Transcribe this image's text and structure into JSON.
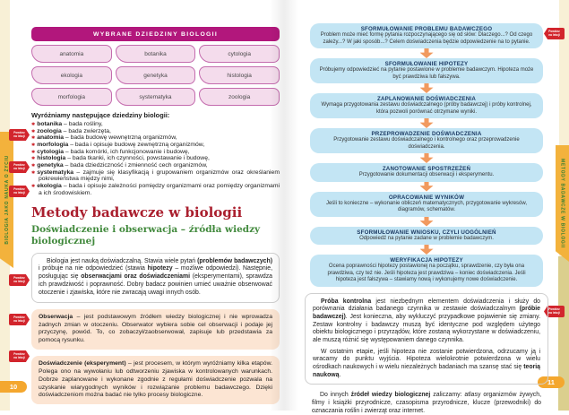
{
  "badge": {
    "line1": "Powtórz",
    "line2": "na lekcji"
  },
  "left_page": {
    "side_tab": "BIOLOGIA JAKO NAUKA O ŻYCIU",
    "page_number": "10",
    "fields_table": {
      "title": "WYBRANE DZIEDZINY BIOLOGII",
      "cells": [
        "anatomia",
        "botanika",
        "cytologia",
        "ekologia",
        "genetyka",
        "histologia",
        "morfologia",
        "systematyka",
        "zoologia"
      ]
    },
    "list_heading": "Wyróżniamy następujące dziedziny biologii:",
    "fields": [
      {
        "term": "botanika",
        "desc": " – bada rośliny,"
      },
      {
        "term": "zoologia",
        "desc": " – bada zwierzęta,"
      },
      {
        "term": "anatomia",
        "desc": " – bada budowę wewnętrzną organizmów,"
      },
      {
        "term": "morfologia",
        "desc": " – bada i opisuje budowę zewnętrzną organizmów,"
      },
      {
        "term": "cytologia",
        "desc": " – bada komórki, ich funkcjonowanie i budowę,"
      },
      {
        "term": "histologia",
        "desc": " – bada tkanki, ich czynności, powstawanie i budowę,"
      },
      {
        "term": "genetyka",
        "desc": " – bada dziedziczność i zmienność cech organizmów,"
      },
      {
        "term": "systematyka",
        "desc": " – zajmuje się klasyfikacją i grupowaniem organizmów oraz określaniem pokrewieństwa między nimi,"
      },
      {
        "term": "ekologia",
        "desc": " – bada i opisuje zależności pomiędzy organizmami oraz pomiędzy organizmami a ich środowiskiem."
      }
    ],
    "section_heading": "Metody badawcze w biologii",
    "subsection_heading": "Doświadczenie i obserwacja – źródła wiedzy biologicznej",
    "intro_paragraph": [
      {
        "t": "Biologia jest nauką doświadczalną. Stawia wiele pytań "
      },
      {
        "t": "(problemów badawczych)",
        "b": true
      },
      {
        "t": " i próbuje na nie odpowiedzieć (stawia "
      },
      {
        "t": "hipotezy",
        "b": true
      },
      {
        "t": " – możliwe odpowiedzi). Następnie, posługując się "
      },
      {
        "t": "obserwacjami oraz doświadczeniami",
        "b": true
      },
      {
        "t": " (eksperymentami), sprawdza ich prawdziwość i poprawność. Dobry badacz powinien umieć uważnie obserwować otoczenie i zjawiska, które nie zwracają uwagi innych osób."
      }
    ],
    "observation_box": [
      {
        "t": "Obserwacja",
        "b": true
      },
      {
        "t": " – jest podstawowym źródłem wiedzy biologicznej i nie wprowadza żadnych zmian w otoczeniu. Obserwator wybiera sobie cel obserwacji i podaje jej przyczynę, powód. To, co zobaczył/zaobserwował, zapisuje lub przedstawia za pomocą rysunku."
      }
    ],
    "experiment_box": [
      {
        "t": "Doświadczenie (eksperyment)",
        "b": true
      },
      {
        "t": " – jest procesem, w którym wyróżniamy kilka etapów. Polega ono na wywołaniu lub odtworzeniu zjawiska w kontrolowanych warunkach. Dobrze zaplanowane i wykonane zgodnie z regułami doświadczenie pozwala na uzyskanie wiarygodnych wyników i rozwiązanie problemu badawczego. Dzięki doświadczeniom można badać nie tylko procesy biologiczne."
      }
    ]
  },
  "right_page": {
    "side_tab": "METODY BADAWCZE W BIOLOGII",
    "page_number": "11",
    "flowchart": {
      "steps": [
        {
          "title": "SFORMUŁOWANIE PROBLEMU BADAWCZEGO",
          "body": "Problem może mieć formę pytania rozpoczynającego się od słów: Dlaczego...? Od czego zależy...? W jaki sposób...?  Celem doświadczenia będzie odpowiedzenie na to pytanie."
        },
        {
          "title": "SFORMUŁOWANIE HIPOTEZY",
          "body": "Próbujemy odpowiedzieć na pytanie postawione w problemie badawczym. Hipoteza może być prawdziwa lub fałszywa."
        },
        {
          "title": "ZAPLANOWANIE DOŚWIADCZENIA",
          "body": "Wymaga przygotowania zestawu doświadczalnego (próby badawczej) i próby kontrolnej, która pozwoli porównać otrzymane wyniki."
        },
        {
          "title": "PRZEPROWADZENIE DOŚWIADCZENIA",
          "body": "Przygotowanie zestawu doświadczalnego i kontrolnego oraz przeprowadzenie doświadczenia."
        },
        {
          "title": "ZANOTOWANIE SPOSTRZEŻEŃ",
          "body": "Przygotowanie dokumentacji obserwacji i eksperymentu."
        },
        {
          "title": "OPRACOWANIE WYNIKÓW",
          "body": "Jeśli to konieczne – wykonanie obliczeń matematycznych, przygotowanie wykresów, diagramów, schematów."
        },
        {
          "title": "SFORMUŁOWANIE WNIOSKU, CZYLI UOGÓLNIEŃ",
          "body": "Odpowiedź na pytanie zadane w problemie badawczym."
        },
        {
          "title": "WERYFIKACJA HIPOTEZY",
          "body": "Ocena poprawności hipotezy postawionej na początku, sprawdzenie, czy była ona prawdziwa, czy też nie. Jeśli hipoteza jest prawdziwa – koniec doświadczenia. Jeśli hipoteza jest fałszywa – stawiamy nową i wykonujemy nowe doświadczenie."
        }
      ]
    },
    "control_paragraph_1": [
      {
        "t": "Próba kontrolna",
        "b": true
      },
      {
        "t": " jest niezbędnym elementem doświadczenia i służy do porównania działania badanego czynnika w zestawie doświadczalnym "
      },
      {
        "t": "(próbie badawczej)",
        "b": true
      },
      {
        "t": ". Jest konieczna, aby wykluczyć przypadkowe pojawienie się zmiany. Zestaw kontrolny i badawczy muszą być identyczne pod względem użytego obiektu biologicznego i przyrządów, które zostaną wykorzystane w doświadczeniu, ale muszą różnić się występowaniem danego czynnika."
      }
    ],
    "control_paragraph_2": [
      {
        "t": "W ostatnim etapie, jeśli hipoteza nie zostanie potwierdzona, odrzucamy ją i wracamy do punktu wyjścia. Hipoteza wielokrotnie potwierdzona w wielu ośrodkach naukowych i w wielu niezależnych badaniach ma szansę stać się "
      },
      {
        "t": "teorią naukową",
        "b": true
      },
      {
        "t": "."
      }
    ],
    "sources_paragraph": [
      {
        "t": "Do innych "
      },
      {
        "t": "źródeł wiedzy biologicznej",
        "b": true
      },
      {
        "t": " zaliczamy: atlasy organizmów żywych, filmy i książki przyrodnicze, czasopisma przyrodnicze, klucze (przewodniki) do oznaczania roślin i zwierząt oraz internet."
      }
    ],
    "colors": {
      "flow_box": "#c3e5f4",
      "flow_title": "#1c3a63",
      "arrow": "#f19a5f",
      "table_header": "#b2177c",
      "table_cell": "#f4dcec",
      "definition_box": "#fce5d3",
      "section_heading": "#aa1f2e",
      "subsection_heading": "#41893c",
      "tab_gold": "#f3b23c",
      "badge_red": "#d2252d",
      "page_pill": "#f4a72e"
    }
  }
}
